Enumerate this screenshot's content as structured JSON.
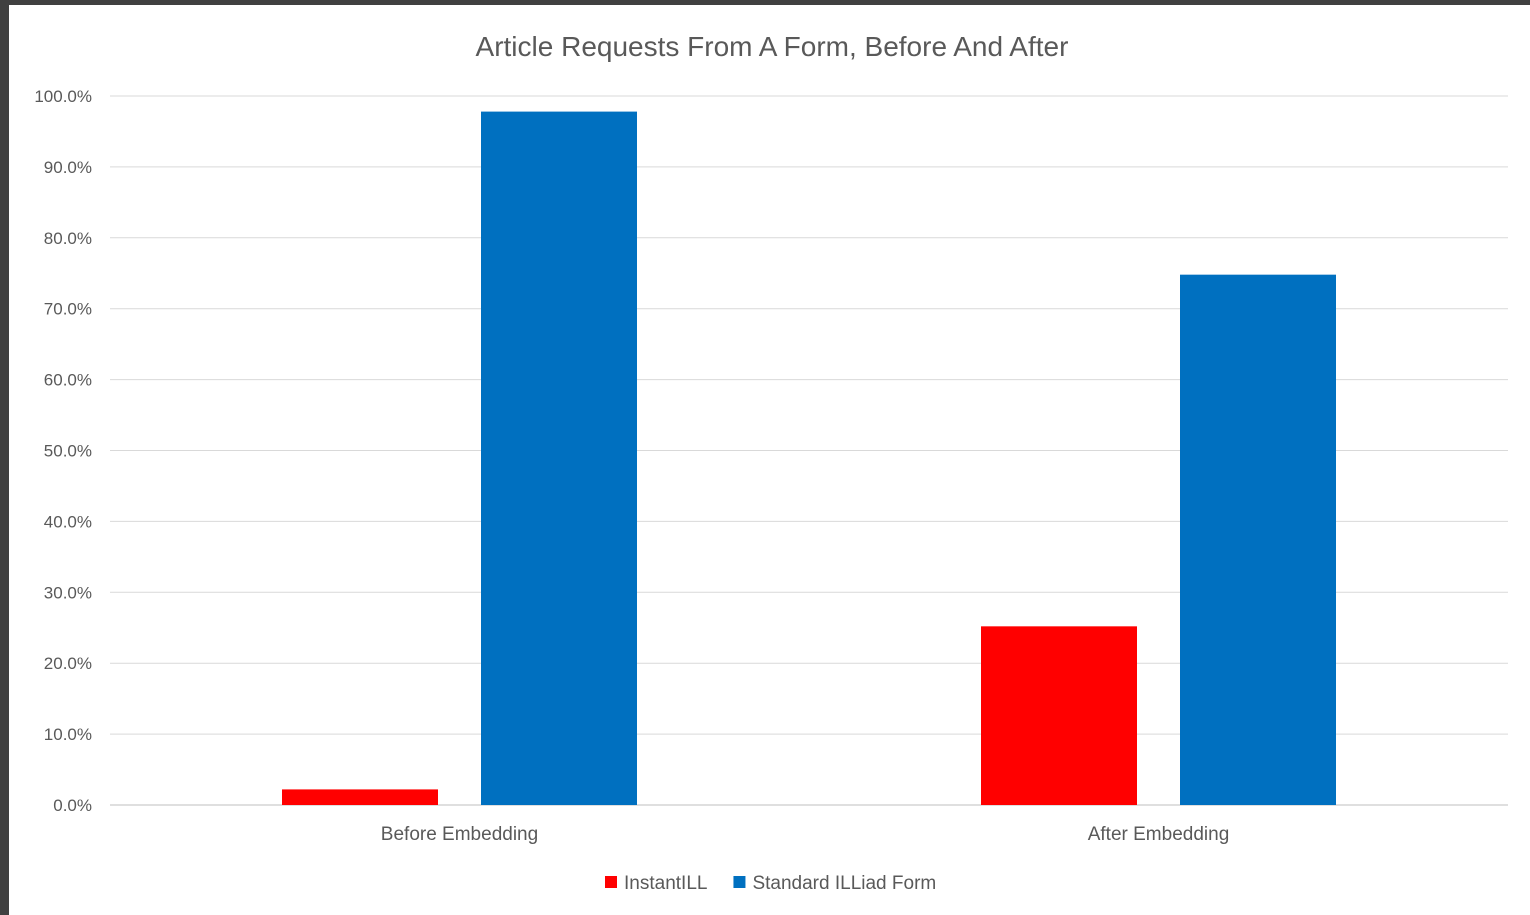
{
  "chart_data": {
    "type": "bar",
    "title": "Article Requests From A Form, Before And After",
    "categories": [
      "Before Embedding",
      "After Embedding"
    ],
    "series": [
      {
        "name": "InstantILL",
        "values": [
          2.2,
          25.2
        ],
        "color": "#ff0000"
      },
      {
        "name": "Standard ILLiad Form",
        "values": [
          97.8,
          74.8
        ],
        "color": "#0070c0"
      }
    ],
    "ylim": [
      0,
      100
    ],
    "yticks": [
      "0.0%",
      "10.0%",
      "20.0%",
      "30.0%",
      "40.0%",
      "50.0%",
      "60.0%",
      "70.0%",
      "80.0%",
      "90.0%",
      "100.0%"
    ],
    "grid": true,
    "legend": "bottom"
  }
}
